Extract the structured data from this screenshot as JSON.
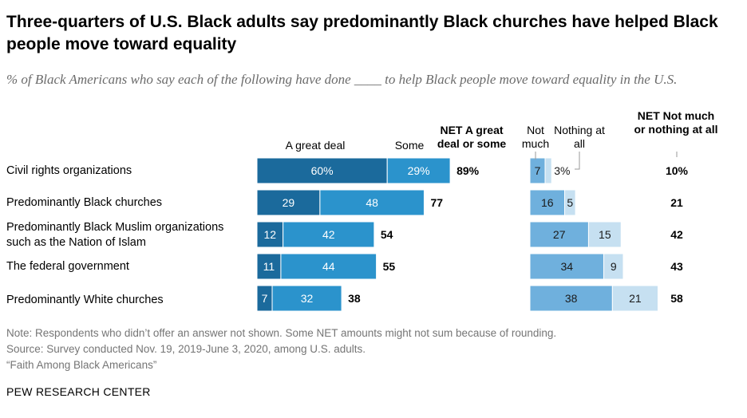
{
  "title": "Three-quarters of U.S. Black adults say predominantly Black churches have helped Black people move toward equality",
  "subtitle": "% of Black Americans who say each of the following have done ____ to help Black people move toward equality in the U.S.",
  "headers": {
    "great_deal": "A great deal",
    "some": "Some",
    "net_great_some": "NET A great deal or some",
    "not_much": "Not much",
    "nothing": "Nothing at all",
    "net_not_nothing": "NET Not much or nothing at all"
  },
  "chart_data": {
    "type": "bar",
    "stacked": true,
    "categories": [
      "Civil rights organizations",
      "Predominantly Black churches",
      "Predominantly Black Muslim organizations such as the Nation of Islam",
      "The federal government",
      "Predominantly White churches"
    ],
    "series": [
      {
        "name": "A great deal",
        "values": [
          60,
          29,
          12,
          11,
          7
        ],
        "labels": [
          "60%",
          "29",
          "12",
          "11",
          "7"
        ],
        "color": "#1b6a9c"
      },
      {
        "name": "Some",
        "values": [
          29,
          48,
          42,
          44,
          32
        ],
        "labels": [
          "29%",
          "48",
          "42",
          "44",
          "32"
        ],
        "color": "#2b93cc"
      },
      {
        "name": "Not much",
        "values": [
          7,
          16,
          27,
          34,
          38
        ],
        "labels": [
          "7",
          "16",
          "27",
          "34",
          "38"
        ],
        "color": "#6fb0dd"
      },
      {
        "name": "Nothing at all",
        "values": [
          3,
          5,
          15,
          9,
          21
        ],
        "labels": [
          "3%",
          "5",
          "15",
          "9",
          "21"
        ],
        "color": "#c6e0f1"
      }
    ],
    "net_positive": [
      89,
      77,
      54,
      55,
      38
    ],
    "net_positive_labels": [
      "89%",
      "77",
      "54",
      "55",
      "38"
    ],
    "net_negative": [
      10,
      21,
      42,
      43,
      58
    ],
    "net_negative_labels": [
      "10%",
      "21",
      "42",
      "43",
      "58"
    ],
    "grid": false,
    "legend": "column headers above bars"
  },
  "notes": [
    "Note: Respondents who didn’t offer an answer not shown. Some NET amounts might not sum because of rounding.",
    "Source: Survey conducted Nov. 19, 2019-June 3, 2020, among U.S. adults.",
    "“Faith Among Black Americans”"
  ],
  "brand": "PEW RESEARCH CENTER"
}
